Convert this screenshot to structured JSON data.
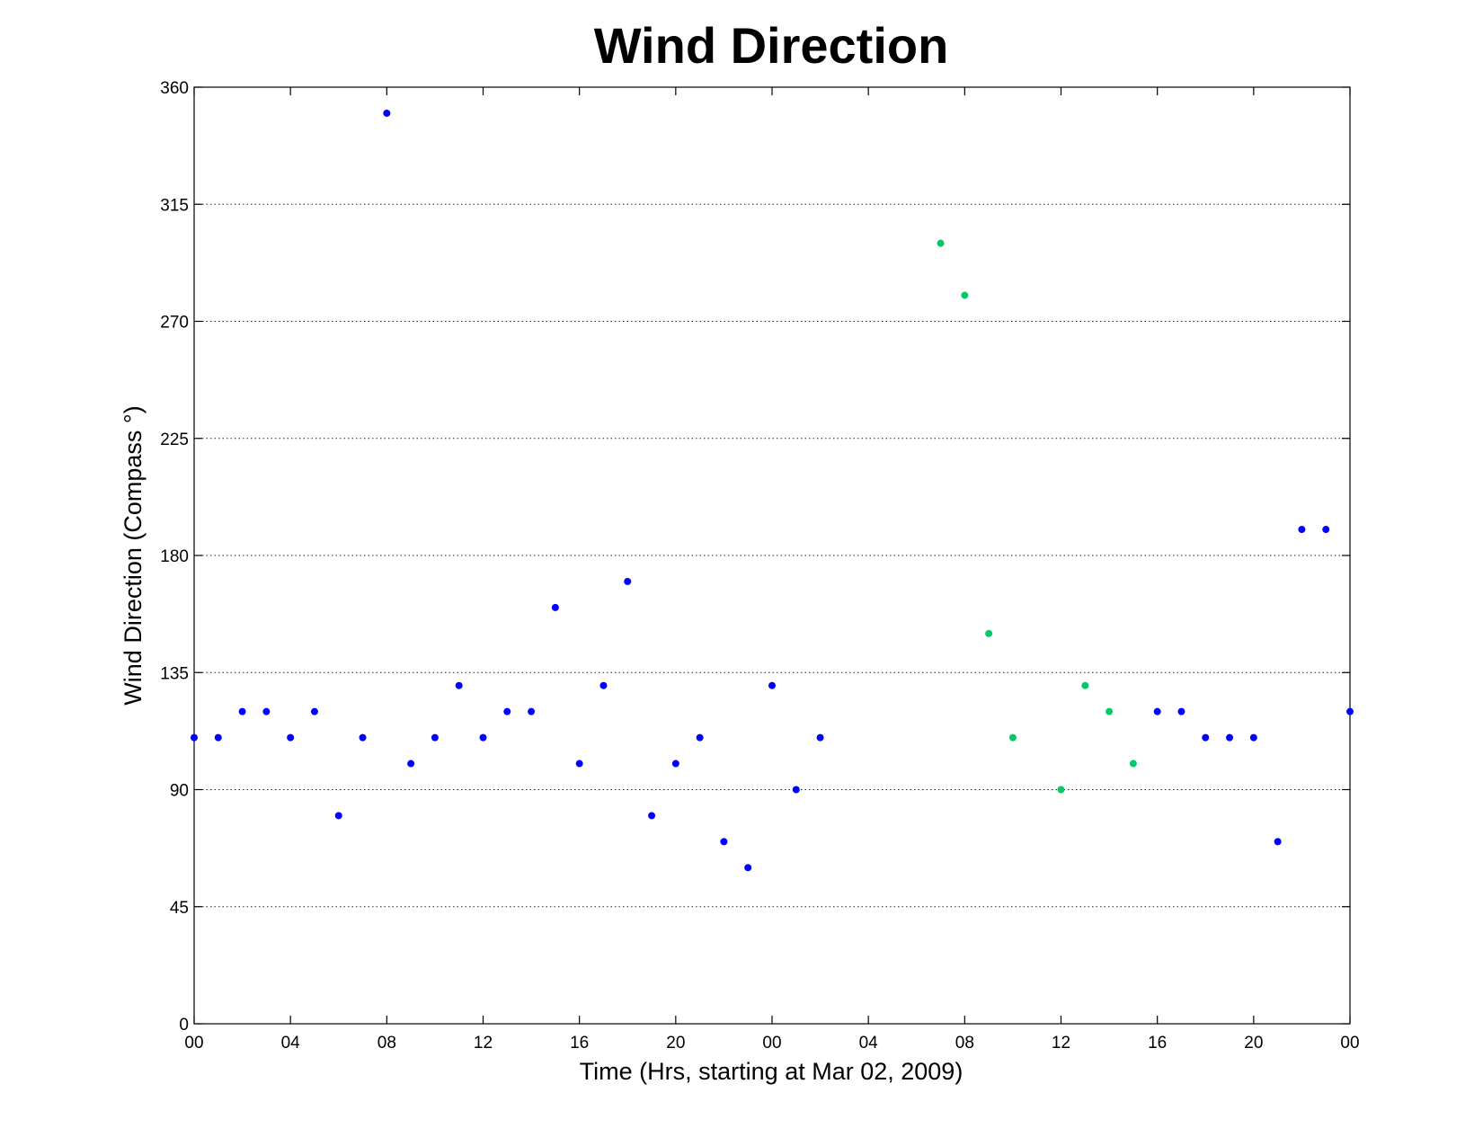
{
  "chart_data": {
    "type": "scatter",
    "title": "Wind Direction",
    "xlabel": "Time (Hrs, starting at Mar 02, 2009)",
    "ylabel": "Wind Direction (Compass  °)",
    "xlim": [
      0,
      48
    ],
    "ylim": [
      0,
      360
    ],
    "grid": "horizontal dotted",
    "x_ticks": [
      {
        "value": 0,
        "label": "00"
      },
      {
        "value": 4,
        "label": "04"
      },
      {
        "value": 8,
        "label": "08"
      },
      {
        "value": 12,
        "label": "12"
      },
      {
        "value": 16,
        "label": "16"
      },
      {
        "value": 20,
        "label": "20"
      },
      {
        "value": 24,
        "label": "00"
      },
      {
        "value": 28,
        "label": "04"
      },
      {
        "value": 32,
        "label": "08"
      },
      {
        "value": 36,
        "label": "12"
      },
      {
        "value": 40,
        "label": "16"
      },
      {
        "value": 44,
        "label": "20"
      },
      {
        "value": 48,
        "label": "00"
      }
    ],
    "y_ticks": [
      {
        "value": 0,
        "label": "0"
      },
      {
        "value": 45,
        "label": "45"
      },
      {
        "value": 90,
        "label": "90"
      },
      {
        "value": 135,
        "label": "135"
      },
      {
        "value": 180,
        "label": "180"
      },
      {
        "value": 225,
        "label": "225"
      },
      {
        "value": 270,
        "label": "270"
      },
      {
        "value": 315,
        "label": "315"
      },
      {
        "value": 360,
        "label": "360"
      }
    ],
    "series": [
      {
        "color": "#0000ff",
        "points": [
          [
            0,
            110
          ],
          [
            1,
            110
          ],
          [
            2,
            120
          ],
          [
            3,
            120
          ],
          [
            4,
            110
          ],
          [
            5,
            120
          ],
          [
            6,
            80
          ],
          [
            7,
            110
          ],
          [
            8,
            350
          ],
          [
            9,
            100
          ],
          [
            10,
            110
          ],
          [
            11,
            130
          ],
          [
            12,
            110
          ],
          [
            13,
            120
          ],
          [
            14,
            120
          ],
          [
            15,
            160
          ],
          [
            16,
            100
          ],
          [
            17,
            130
          ],
          [
            18,
            170
          ],
          [
            19,
            80
          ],
          [
            20,
            100
          ],
          [
            21,
            110
          ],
          [
            22,
            70
          ],
          [
            23,
            60
          ],
          [
            24,
            130
          ],
          [
            25,
            90
          ],
          [
            26,
            110
          ],
          [
            40,
            120
          ],
          [
            41,
            120
          ],
          [
            42,
            110
          ],
          [
            43,
            110
          ],
          [
            44,
            110
          ],
          [
            45,
            70
          ],
          [
            46,
            190
          ],
          [
            47,
            190
          ],
          [
            48,
            120
          ]
        ]
      },
      {
        "color": "#00cc66",
        "points": [
          [
            31,
            300
          ],
          [
            32,
            280
          ],
          [
            33,
            150
          ],
          [
            34,
            110
          ],
          [
            36,
            90
          ],
          [
            37,
            130
          ],
          [
            38,
            120
          ],
          [
            39,
            100
          ]
        ]
      }
    ]
  }
}
